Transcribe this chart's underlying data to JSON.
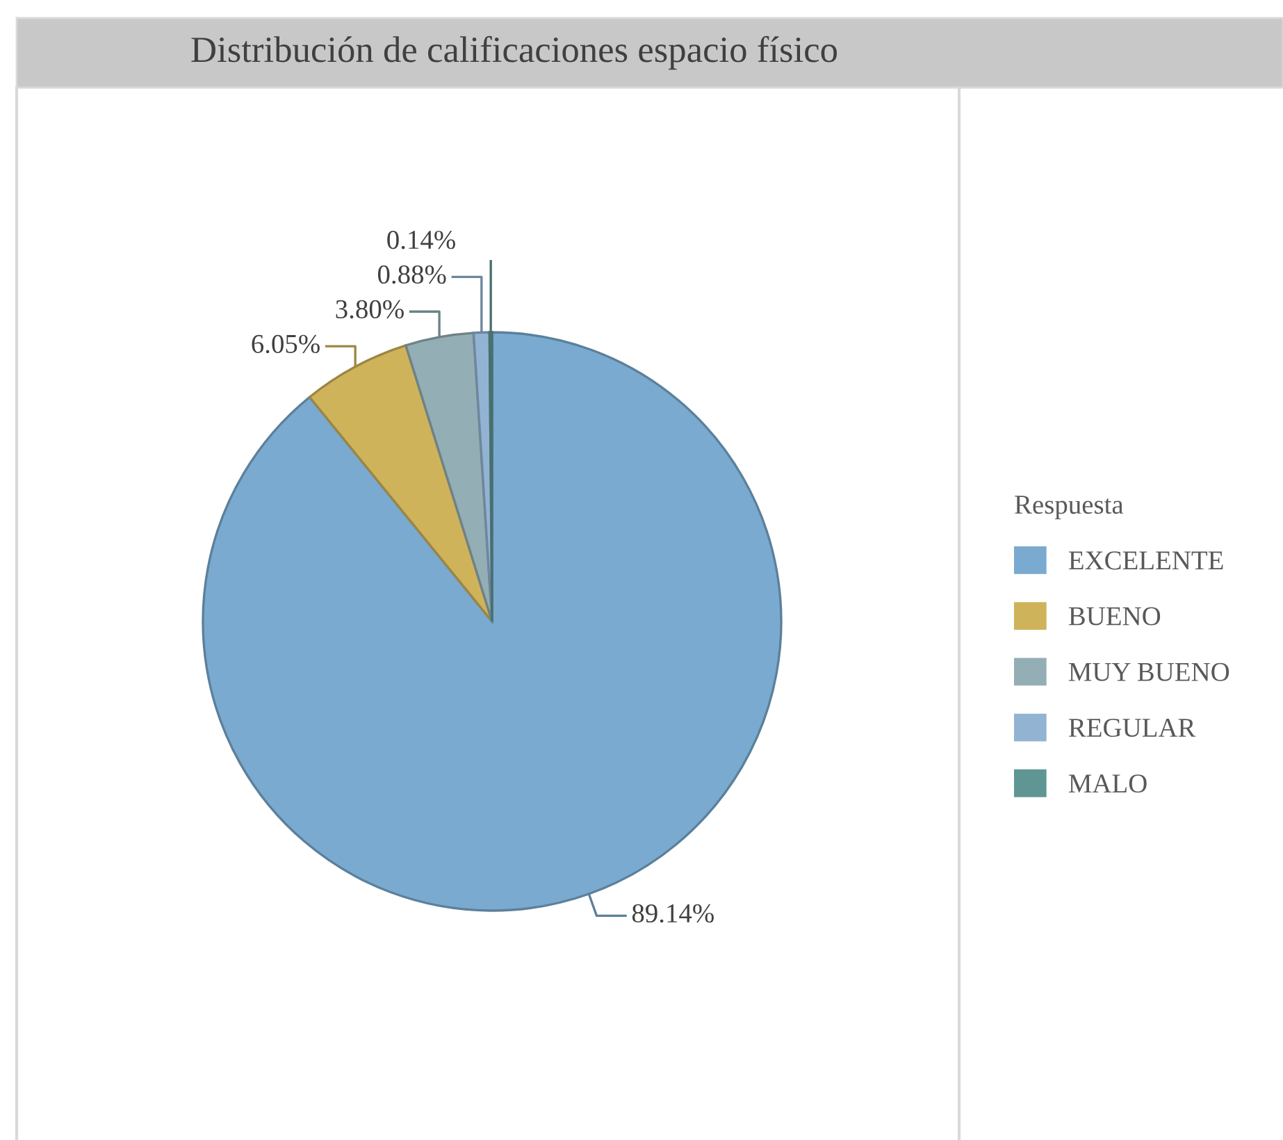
{
  "chart_data": {
    "type": "pie",
    "title": "Distribución de calificaciones espacio físico",
    "legend_title": "Respuesta",
    "legend": "right",
    "value_labels": [
      "89.14%",
      "6.05%",
      "3.80%",
      "0.88%",
      "0.14%"
    ],
    "categories": [
      "EXCELENTE",
      "BUENO",
      "MUY BUENO",
      "REGULAR",
      "MALO"
    ],
    "values": [
      89.14,
      6.05,
      3.8,
      0.88,
      0.14
    ],
    "colors": [
      "#7aaacf",
      "#cfb35a",
      "#93aeb4",
      "#92b3d2",
      "#5f9693"
    ]
  }
}
